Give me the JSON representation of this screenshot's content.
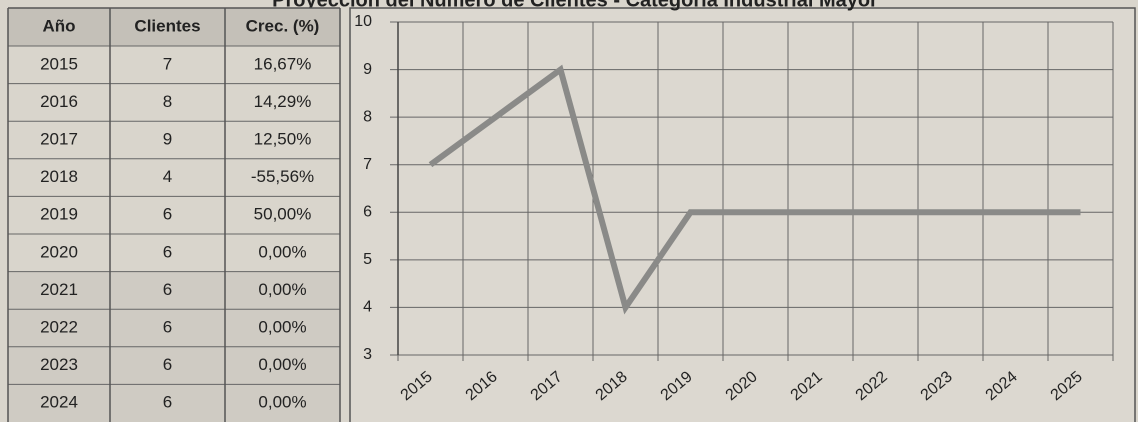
{
  "table": {
    "header": [
      "Año",
      "Clientes",
      "Crec. (%)"
    ],
    "rows": [
      [
        "2015",
        "7",
        "16,67%"
      ],
      [
        "2016",
        "8",
        "14,29%"
      ],
      [
        "2017",
        "9",
        "12,50%"
      ],
      [
        "2018",
        "4",
        "-55,56%"
      ],
      [
        "2019",
        "6",
        "50,00%"
      ],
      [
        "2020",
        "6",
        "0,00%"
      ],
      [
        "2021",
        "6",
        "0,00%"
      ],
      [
        "2022",
        "6",
        "0,00%"
      ],
      [
        "2023",
        "6",
        "0,00%"
      ],
      [
        "2024",
        "6",
        "0,00%"
      ]
    ]
  },
  "chart_data": {
    "type": "line",
    "title": "Proyección del Número de Clientes - Categoría Industrial Mayor",
    "categories": [
      "2015",
      "2016",
      "2017",
      "2018",
      "2019",
      "2020",
      "2021",
      "2022",
      "2023",
      "2024",
      "2025"
    ],
    "values": [
      7,
      8,
      9,
      4,
      6,
      6,
      6,
      6,
      6,
      6,
      6
    ],
    "color": "#8a8a88",
    "ylim": [
      3,
      10
    ],
    "yticks": [
      3,
      4,
      5,
      6,
      7,
      8,
      9,
      10
    ],
    "grid": true
  }
}
